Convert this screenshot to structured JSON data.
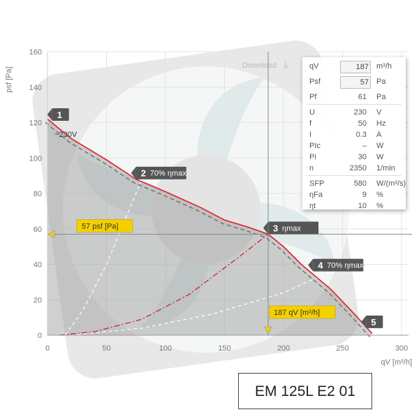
{
  "chart_data": {
    "type": "line",
    "xlabel": "qV [m³/h]",
    "ylabel": "psf [Pa]",
    "xlim": [
      0,
      300
    ],
    "ylim": [
      0,
      160
    ],
    "xticks": [
      0,
      50,
      100,
      150,
      200,
      250,
      300
    ],
    "yticks": [
      0,
      20,
      40,
      60,
      80,
      100,
      120,
      140,
      160
    ],
    "grid": true,
    "series": [
      {
        "name": "~230V",
        "color": "#e0202a",
        "x": [
          0,
          20,
          50,
          75,
          100,
          130,
          150,
          170,
          187,
          200,
          215,
          240,
          260,
          275
        ],
        "y": [
          122,
          111,
          99,
          88,
          81,
          72,
          65,
          61,
          57,
          50,
          40,
          26,
          12,
          1
        ]
      }
    ],
    "system_curve": {
      "x": [
        10,
        40,
        80,
        120,
        160,
        187
      ],
      "y": [
        0,
        2,
        9,
        23,
        43,
        57
      ]
    },
    "reference_curves": [
      {
        "name": "70% ηmax low",
        "x": [
          15,
          30,
          50,
          70,
          80
        ],
        "y": [
          0,
          14,
          40,
          72,
          88
        ]
      },
      {
        "name": "70% ηmax high",
        "x": [
          20,
          80,
          140,
          200,
          240
        ],
        "y": [
          0,
          4,
          12,
          24,
          36
        ]
      }
    ],
    "markers": [
      {
        "num": "1",
        "label": "",
        "x": 4,
        "y": 121
      },
      {
        "num": "2",
        "label": "70% ηmax",
        "x": 75,
        "y": 88
      },
      {
        "num": "3",
        "label": "ηmax",
        "x": 187,
        "y": 57
      },
      {
        "num": "4",
        "label": "70% ηmax",
        "x": 225,
        "y": 36
      },
      {
        "num": "5",
        "label": "",
        "x": 270,
        "y": 4
      }
    ],
    "operating_point": {
      "x": 187,
      "y": 57,
      "x_label": "187 qV [m³/h]",
      "y_label": "57 psf [Pa]"
    },
    "voltage_label": "~230V"
  },
  "download": {
    "label": "Download"
  },
  "info_panel": {
    "rows": [
      {
        "symbol": "qV",
        "value": "187",
        "unit": "m³/h",
        "input": true
      },
      {
        "symbol": "Psf",
        "value": "57",
        "unit": "Pa",
        "input": true
      },
      {
        "symbol": "Pf",
        "value": "61",
        "unit": "Pa",
        "input": false
      },
      {
        "symbol": "U",
        "value": "230",
        "unit": "V",
        "input": false
      },
      {
        "symbol": "f",
        "value": "50",
        "unit": "Hz",
        "input": false
      },
      {
        "symbol": "I",
        "value": "0.3",
        "unit": "A",
        "input": false
      },
      {
        "symbol": "PIc",
        "value": "–",
        "unit": "W",
        "input": false
      },
      {
        "symbol": "Pi",
        "value": "30",
        "unit": "W",
        "input": false
      },
      {
        "symbol": "n",
        "value": "2350",
        "unit": "1/min",
        "input": false
      },
      {
        "symbol": "SFP",
        "value": "580",
        "unit": "W/(m³/s)",
        "input": false
      },
      {
        "symbol": "ηFa",
        "value": "9",
        "unit": "%",
        "input": false
      },
      {
        "symbol": "ηt",
        "value": "10",
        "unit": "%",
        "input": false
      }
    ]
  },
  "model": {
    "name": "EM 125L E2 01"
  }
}
